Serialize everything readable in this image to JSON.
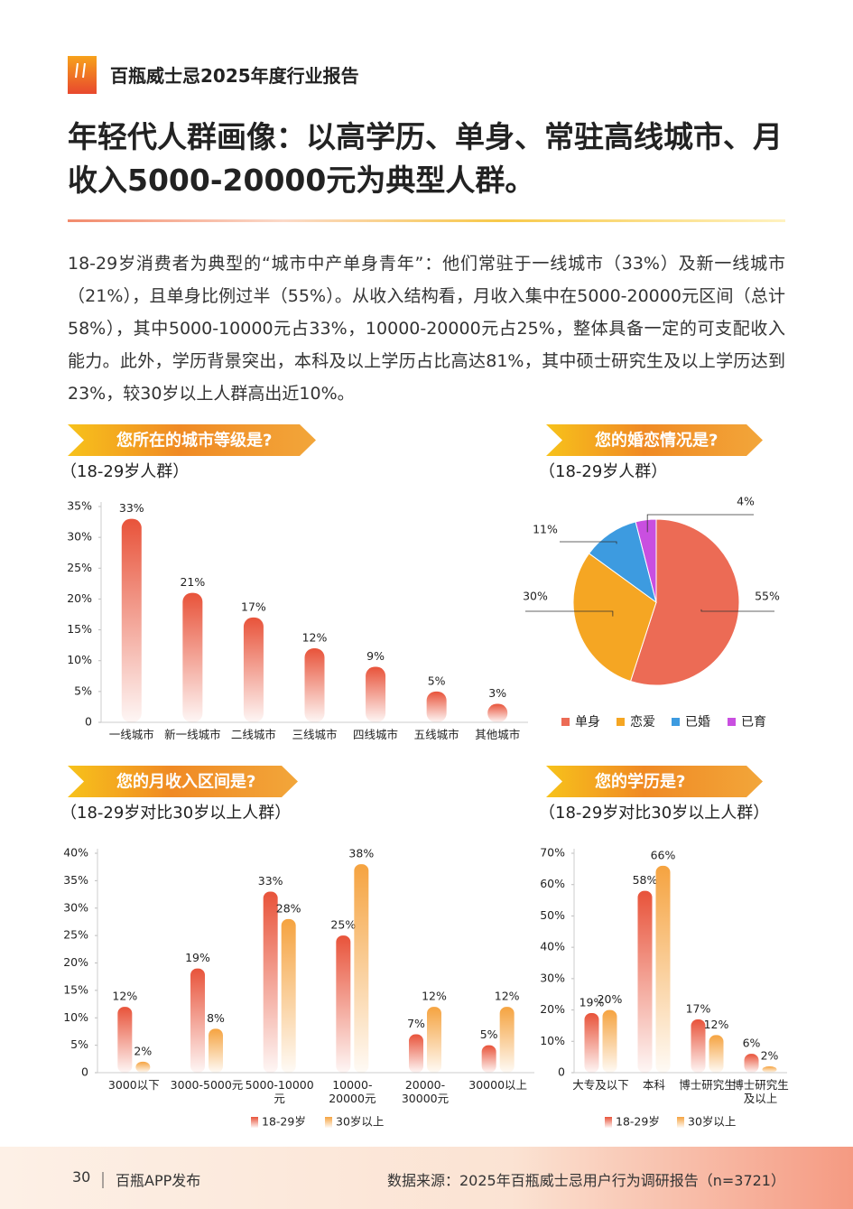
{
  "header": {
    "title": "百瓶威士忌2025年度行业报告"
  },
  "headline": [
    "年轻代人群画像：以高学历、单身、常驻高线城市、月",
    "收入5000-20000元为典型人群。"
  ],
  "paragraph": "18-29岁消费者为典型的“城市中产单身青年”：他们常驻于一线城市（33%）及新一线城市（21%），且单身比例过半（55%）。从收入结构看，月收入集中在5000-20000元区间（总计58%），其中5000-10000元占33%，10000-20000元占25%，整体具备一定的可支配收入能力。此外，学历背景突出，本科及以上学历占比高达81%，其中硕士研究生及以上学历达到23%，较30岁以上人群高出近10%。",
  "footer": {
    "page": "30",
    "brand": "百瓶APP发布",
    "source": "数据来源：2025年百瓶威士忌用户行为调研报告（n=3721）"
  },
  "chart_data": [
    {
      "type": "bar",
      "title": "您所在的城市等级是?",
      "subtitle": "（18-29岁人群）",
      "categories": [
        "一线城市",
        "新一线城市",
        "二线城市",
        "三线城市",
        "四线城市",
        "五线城市",
        "其他城市"
      ],
      "values": [
        33,
        21,
        17,
        12,
        9,
        5,
        3
      ],
      "value_labels": [
        "33%",
        "21%",
        "17%",
        "12%",
        "9%",
        "5%",
        "3%"
      ],
      "color": "#e8533a",
      "ylim": [
        0,
        35
      ],
      "yticks": [
        0,
        {
          "value": 5,
          "label": "5%"
        },
        {
          "value": 10,
          "label": "10%"
        },
        {
          "value": 15,
          "label": "15%"
        },
        {
          "value": 20,
          "label": "20%"
        },
        {
          "value": 25,
          "label": "25%"
        },
        {
          "value": 30,
          "label": "30%"
        },
        {
          "value": 35,
          "label": "35%"
        }
      ]
    },
    {
      "type": "pie",
      "title": "您的婚恋情况是?",
      "subtitle": "（18-29岁人群）",
      "categories": [
        "单身",
        "恋爱",
        "已婚",
        "已育"
      ],
      "values": [
        55,
        30,
        11,
        4
      ],
      "value_labels": [
        "55%",
        "30%",
        "11%",
        "4%"
      ],
      "colors": [
        "#ec6b55",
        "#f5a623",
        "#3d9be0",
        "#c94fe0"
      ]
    },
    {
      "type": "bar",
      "title": "您的月收入区间是?",
      "subtitle": "（18-29岁对比30岁以上人群）",
      "categories": [
        "3000以下",
        "3000-5000元",
        "5000-10000元",
        "10000-20000元",
        "20000-30000元",
        "30000以上"
      ],
      "series": [
        {
          "name": "18-29岁",
          "color": "#e8533a",
          "values": [
            12,
            19,
            33,
            25,
            7,
            5
          ],
          "value_labels": [
            "12%",
            "19%",
            "33%",
            "25%",
            "7%",
            "5%"
          ]
        },
        {
          "name": "30岁以上",
          "color": "#f5a340",
          "values": [
            2,
            8,
            28,
            38,
            12,
            12
          ],
          "value_labels": [
            "2%",
            "8%",
            "28%",
            "38%",
            "12%",
            "12%"
          ]
        }
      ],
      "ylim": [
        0,
        40
      ],
      "yticks": [
        0,
        {
          "value": 5,
          "label": "5%"
        },
        {
          "value": 10,
          "label": "10%"
        },
        {
          "value": 15,
          "label": "15%"
        },
        {
          "value": 20,
          "label": "20%"
        },
        {
          "value": 25,
          "label": "25%"
        },
        {
          "value": 30,
          "label": "30%"
        },
        {
          "value": 35,
          "label": "35%"
        },
        {
          "value": 40,
          "label": "40%"
        }
      ]
    },
    {
      "type": "bar",
      "title": "您的学历是?",
      "subtitle": "（18-29岁对比30岁以上人群）",
      "categories": [
        "大专及以下",
        "本科",
        "博士研究生",
        "博士研究生及以上"
      ],
      "series": [
        {
          "name": "18-29岁",
          "color": "#e8533a",
          "values": [
            19,
            58,
            17,
            6
          ],
          "value_labels": [
            "19%",
            "58%",
            "17%",
            "6%"
          ]
        },
        {
          "name": "30岁以上",
          "color": "#f5a340",
          "values": [
            20,
            66,
            12,
            2
          ],
          "value_labels": [
            "20%",
            "66%",
            "12%",
            "2%"
          ]
        }
      ],
      "ylim": [
        0,
        70
      ],
      "yticks": [
        0,
        {
          "value": 10,
          "label": "10%"
        },
        {
          "value": 20,
          "label": "20%"
        },
        {
          "value": 30,
          "label": "30%"
        },
        {
          "value": 40,
          "label": "40%"
        },
        {
          "value": 50,
          "label": "50%"
        },
        {
          "value": 60,
          "label": "60%"
        },
        {
          "value": 70,
          "label": "70%"
        }
      ]
    }
  ]
}
